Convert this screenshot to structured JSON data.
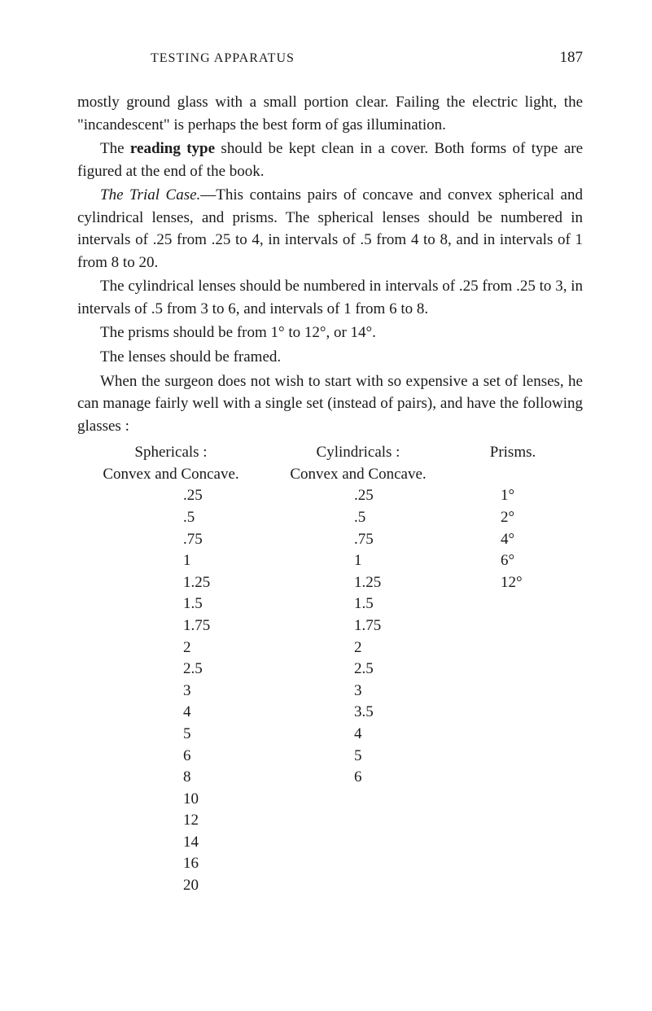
{
  "header": {
    "title": "TESTING APPARATUS",
    "page_number": "187"
  },
  "paragraphs": {
    "p1_a": "mostly ground glass with a small portion clear. Failing the electric light, the \"incandescent\" is perhaps the best form of gas illumination.",
    "p2_pre": "The ",
    "p2_bold": "reading type",
    "p2_post": " should be kept clean in a cover. Both forms of type are figured at the end of the book.",
    "p3_italic": "The Trial Case.",
    "p3_post": "—This contains pairs of concave and convex spherical and cylindrical lenses, and prisms. The spherical lenses should be numbered in intervals of .25 from .25 to 4, in intervals of .5 from 4 to 8, and in intervals of 1 from 8 to 20.",
    "p4": "The cylindrical lenses should be numbered in intervals of .25 from .25 to 3, in intervals of .5 from 3 to 6, and intervals of 1 from 6 to 8.",
    "p5": "The prisms should be from 1° to 12°, or 14°.",
    "p6": "The lenses should be framed.",
    "p7": "When the surgeon does not wish to start with so expensive a set of lenses, he can manage fairly well with a single set (instead of pairs), and have the following glasses :"
  },
  "table": {
    "headers": {
      "col1_line1": "Sphericals :",
      "col1_line2": "Convex and Concave.",
      "col2_line1": "Cylindricals :",
      "col2_line2": "Convex and Concave.",
      "col3_line1": "Prisms."
    },
    "rows": [
      {
        "c1": ".25",
        "c2": ".25",
        "c3": "1°"
      },
      {
        "c1": ".5",
        "c2": ".5",
        "c3": "2°"
      },
      {
        "c1": ".75",
        "c2": ".75",
        "c3": "4°"
      },
      {
        "c1": "1",
        "c2": "1",
        "c3": "6°"
      },
      {
        "c1": "1.25",
        "c2": "1.25",
        "c3": "12°"
      },
      {
        "c1": "1.5",
        "c2": "1.5",
        "c3": ""
      },
      {
        "c1": "1.75",
        "c2": "1.75",
        "c3": ""
      },
      {
        "c1": "2",
        "c2": "2",
        "c3": ""
      },
      {
        "c1": "2.5",
        "c2": "2.5",
        "c3": ""
      },
      {
        "c1": "3",
        "c2": "3",
        "c3": ""
      },
      {
        "c1": "4",
        "c2": "3.5",
        "c3": ""
      },
      {
        "c1": "5",
        "c2": "4",
        "c3": ""
      },
      {
        "c1": "6",
        "c2": "5",
        "c3": ""
      },
      {
        "c1": "8",
        "c2": "6",
        "c3": ""
      },
      {
        "c1": "10",
        "c2": "",
        "c3": ""
      },
      {
        "c1": "12",
        "c2": "",
        "c3": ""
      },
      {
        "c1": "14",
        "c2": "",
        "c3": ""
      },
      {
        "c1": "16",
        "c2": "",
        "c3": ""
      },
      {
        "c1": "20",
        "c2": "",
        "c3": ""
      }
    ]
  },
  "style": {
    "background_color": "#ffffff",
    "text_color": "#1a1a1a",
    "body_fontsize": 19,
    "header_fontsize": 16
  }
}
